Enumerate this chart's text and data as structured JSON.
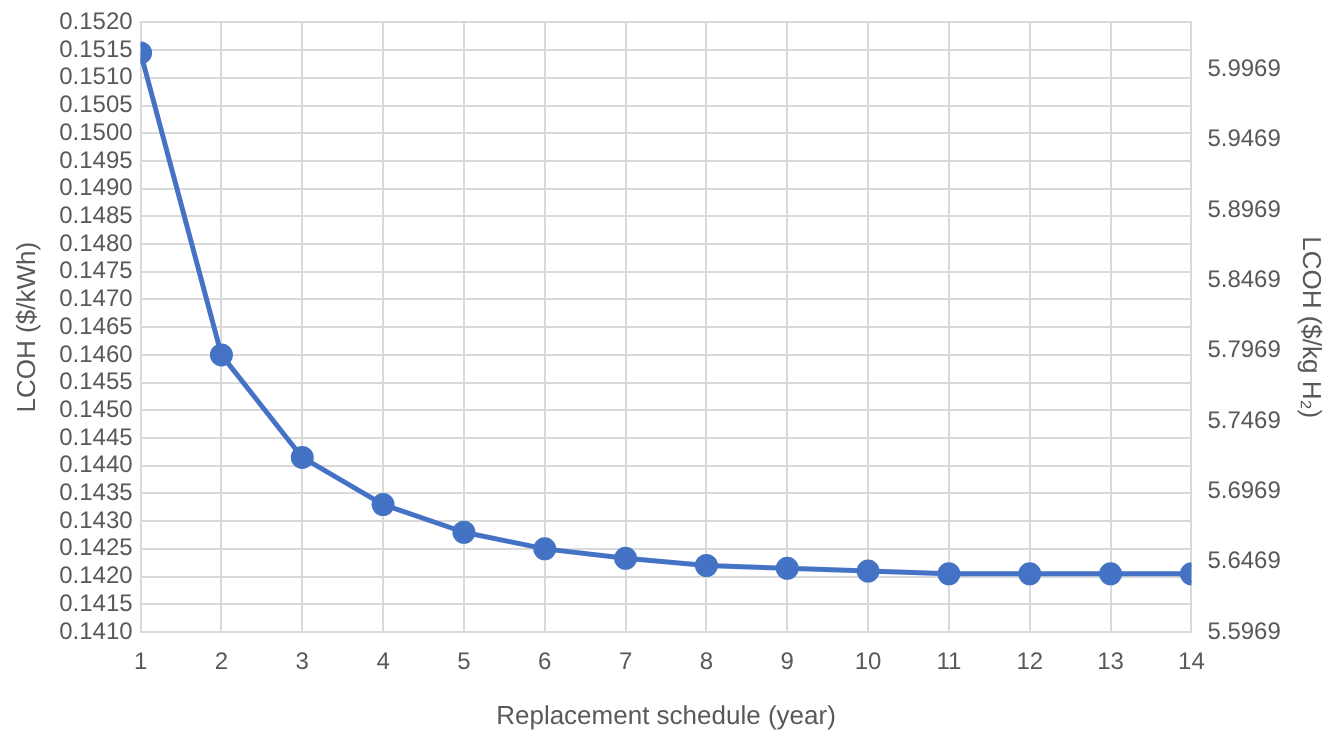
{
  "chart_data": {
    "type": "line",
    "xlabel": "Replacement schedule (year)",
    "ylabel": "LCOH ($/kWh)",
    "y2label": "LCOH ($/kg H₂)",
    "x": [
      1,
      2,
      3,
      4,
      5,
      6,
      7,
      8,
      9,
      10,
      11,
      12,
      13,
      14
    ],
    "series": [
      {
        "color": "#4472c4",
        "values": [
          0.15145,
          0.146,
          0.14415,
          0.1433,
          0.1428,
          0.1425,
          0.14233,
          0.1422,
          0.14215,
          0.1421,
          0.14205,
          0.14205,
          0.14205,
          0.14205
        ]
      }
    ],
    "xlim": [
      1,
      14
    ],
    "xticks": [
      1,
      2,
      3,
      4,
      5,
      6,
      7,
      8,
      9,
      10,
      11,
      12,
      13,
      14
    ],
    "ylim": [
      0.141,
      0.152
    ],
    "yticks": [
      {
        "value": 0.141,
        "label": "0.1410"
      },
      {
        "value": 0.1415,
        "label": "0.1415"
      },
      {
        "value": 0.142,
        "label": "0.1420"
      },
      {
        "value": 0.1425,
        "label": "0.1425"
      },
      {
        "value": 0.143,
        "label": "0.1430"
      },
      {
        "value": 0.1435,
        "label": "0.1435"
      },
      {
        "value": 0.144,
        "label": "0.1440"
      },
      {
        "value": 0.1445,
        "label": "0.1445"
      },
      {
        "value": 0.145,
        "label": "0.1450"
      },
      {
        "value": 0.1455,
        "label": "0.1455"
      },
      {
        "value": 0.146,
        "label": "0.1460"
      },
      {
        "value": 0.1465,
        "label": "0.1465"
      },
      {
        "value": 0.147,
        "label": "0.1470"
      },
      {
        "value": 0.1475,
        "label": "0.1475"
      },
      {
        "value": 0.148,
        "label": "0.1480"
      },
      {
        "value": 0.1485,
        "label": "0.1485"
      },
      {
        "value": 0.149,
        "label": "0.1490"
      },
      {
        "value": 0.1495,
        "label": "0.1495"
      },
      {
        "value": 0.15,
        "label": "0.1500"
      },
      {
        "value": 0.1505,
        "label": "0.1505"
      },
      {
        "value": 0.151,
        "label": "0.1510"
      },
      {
        "value": 0.1515,
        "label": "0.1515"
      },
      {
        "value": 0.152,
        "label": "0.1520"
      }
    ],
    "y2lim": [
      5.5969,
      6.0303
    ],
    "y2ticks": [
      5.5969,
      5.6469,
      5.6969,
      5.7469,
      5.7969,
      5.8469,
      5.8969,
      5.9469,
      5.9969
    ],
    "grid": true,
    "marker": "circle",
    "line_style": "solid"
  }
}
